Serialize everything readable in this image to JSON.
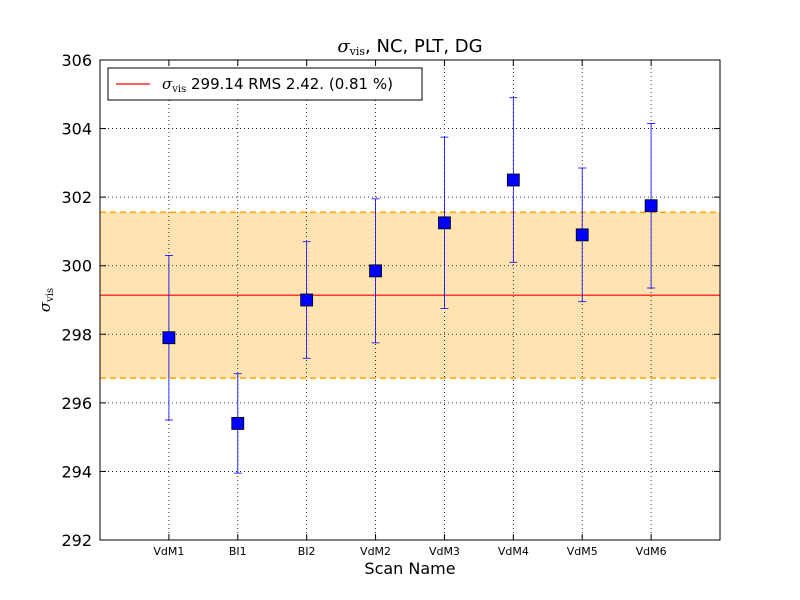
{
  "chart_data": {
    "type": "scatter",
    "title": {
      "symbol": "σ",
      "subscript": "vis",
      "text": ", NC, PLT, DG"
    },
    "xlabel": "Scan Name",
    "ylabel": {
      "symbol": "σ",
      "subscript": "vis"
    },
    "categories": [
      "VdM1",
      "BI1",
      "BI2",
      "VdM2",
      "VdM3",
      "VdM4",
      "VdM5",
      "VdM6"
    ],
    "values": [
      297.9,
      295.4,
      299.0,
      299.85,
      301.25,
      302.5,
      300.9,
      301.75
    ],
    "errors": [
      2.4,
      1.45,
      1.7,
      2.1,
      2.5,
      2.4,
      1.95,
      2.4
    ],
    "ylim": [
      292,
      306
    ],
    "yticks": [
      292,
      294,
      296,
      298,
      300,
      302,
      304,
      306
    ],
    "x_slots": 9,
    "mean": 299.14,
    "band": [
      296.72,
      301.56
    ],
    "grid": true,
    "legend": {
      "placement": "top-left",
      "symbol": "σ",
      "subscript": "vis",
      "text": " 299.14 RMS 2.42. (0.81 %)"
    },
    "colors": {
      "marker": "#0000ff",
      "errorbar": "#0000ff",
      "mean_line": "#ff0000",
      "band_fill": "#ffe3b3",
      "band_edge": "#ffa500"
    }
  }
}
